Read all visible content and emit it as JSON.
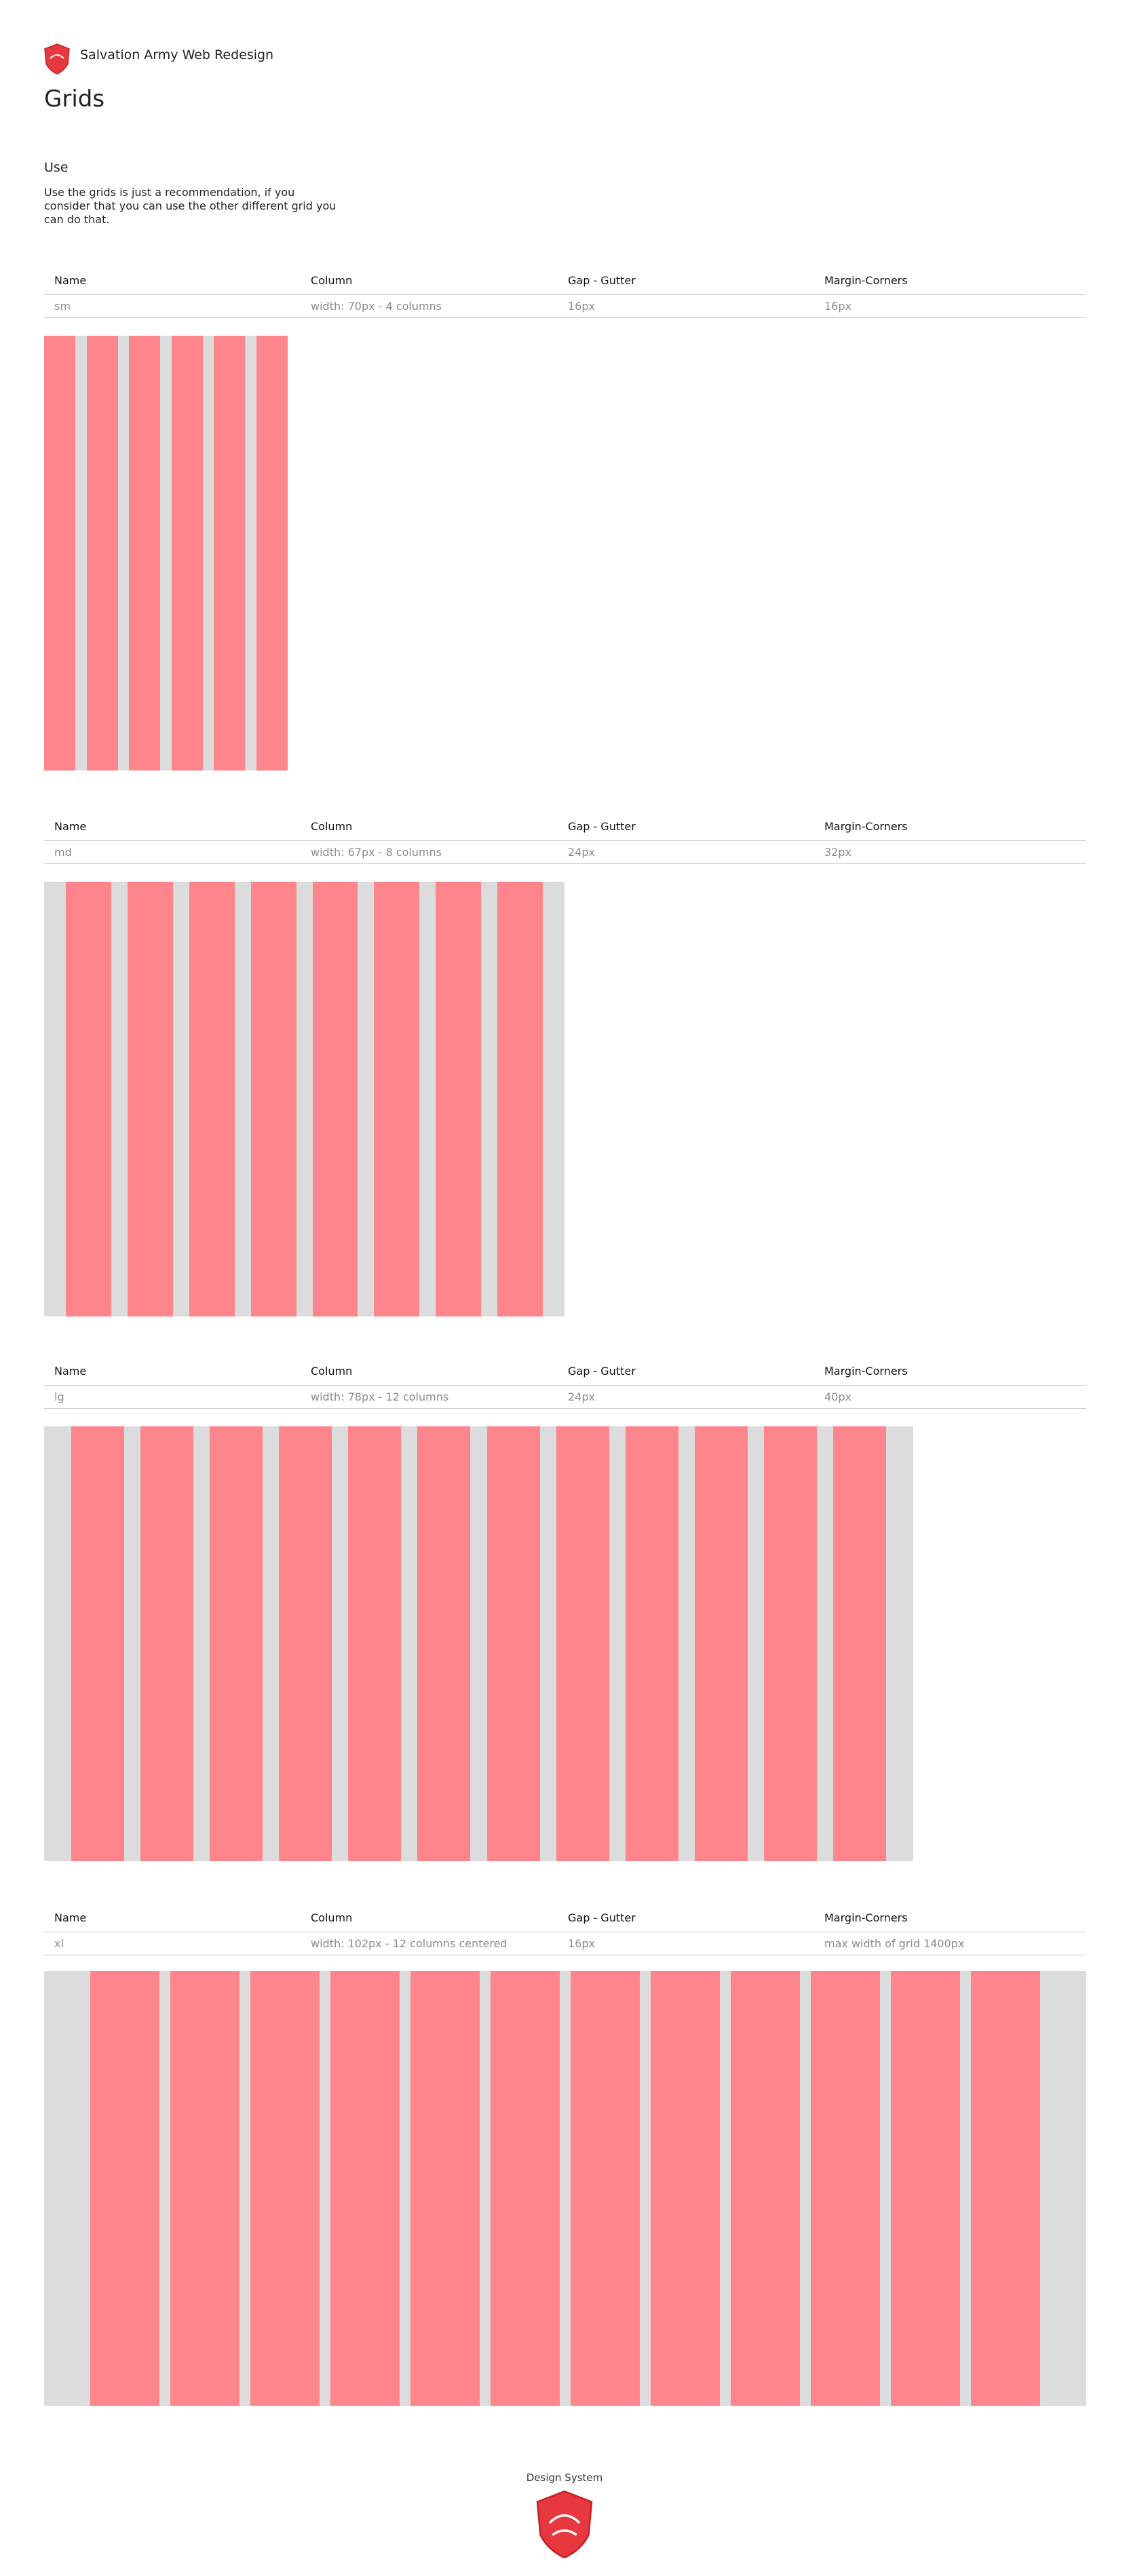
{
  "header": {
    "brand": "Salvation Army Web Redesign",
    "title": "Grids"
  },
  "intro": {
    "heading": "Use",
    "text": "Use the grids is just a recommendation, if you consider that you can use the other different grid you can do that."
  },
  "grids": [
    {
      "columns": [
        "Name",
        "Column",
        "Gap - Gutter",
        "Margin-Corners"
      ],
      "row": [
        "sm",
        "width: 70px - 4 columns",
        "16px",
        "16px"
      ]
    },
    {
      "columns": [
        "Name",
        "Column",
        "Gap - Gutter",
        "Margin-Corners"
      ],
      "row": [
        "md",
        "width: 67px - 8 columns",
        "24px",
        "32px"
      ]
    },
    {
      "columns": [
        "Name",
        "Column",
        "Gap - Gutter",
        "Margin-Corners"
      ],
      "row": [
        "lg",
        "width: 78px - 12 columns",
        "24px",
        "40px"
      ]
    },
    {
      "columns": [
        "Name",
        "Column",
        "Gap - Gutter",
        "Margin-Corners"
      ],
      "row": [
        "xl",
        "width: 102px - 12 columns centered",
        "16px",
        "max width of grid 1400px"
      ]
    }
  ],
  "footer": {
    "label": "Design System"
  }
}
